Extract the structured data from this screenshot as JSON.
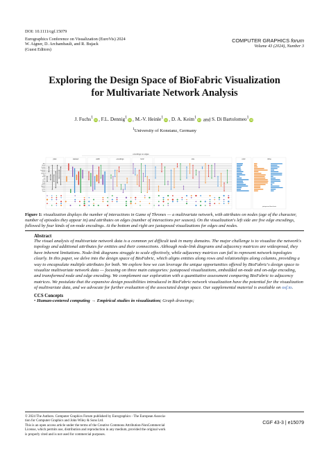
{
  "header": {
    "doi": "DOI: 10.1111/cgf.15079",
    "conference": "Eurographics Conference on Visualization (EuroVis) 2024",
    "editors": "W. Aigner, D. Archambault, and R. Bujack",
    "editors_note": "(Guest Editors)",
    "journal_name": "COMPUTER GRAPHICS",
    "journal_forum": "forum",
    "volume": "Volume 43 (2024), Number 3"
  },
  "title_line1": "Exploring the Design Space of BioFabric Visualization",
  "title_line2": "for Multivariate Network Analysis",
  "authors": [
    {
      "name": "J. Fuchs",
      "sup": "1"
    },
    {
      "name": "F.L. Dennig",
      "sup": "1"
    },
    {
      "name": "M.-V. Heinle",
      "sup": "1"
    },
    {
      "name": "D. A. Keim",
      "sup": "1"
    },
    {
      "name": "S. Di Bartolomeo",
      "sup": "1"
    }
  ],
  "author_sep": ", ",
  "author_and": " and ",
  "affiliation_sup": "1",
  "affiliation": "University of Konstanz, Germany",
  "teaser": {
    "group_title": "encodings on edges",
    "sections": [
      "plain",
      "stacked",
      "width",
      "encodings",
      "horiz",
      "size",
      "color",
      "inline"
    ],
    "node_labels": [
      "Arya",
      "Bronn",
      "Catelyn",
      "Cersei",
      "Daenerys",
      "Davos",
      "Eddard",
      "Gilly",
      "Jaime",
      "Jon",
      "Lysa",
      "Petyr",
      "Robb",
      "Sansa",
      "Stannis",
      "Theon",
      "Tyrion",
      "Varys"
    ],
    "juxtaposed_label": "juxtaposed barcharts",
    "colors": {
      "blue": "#3b8fd6",
      "orange": "#f08a2c",
      "red": "#d8322b",
      "green": "#3aa655",
      "purple": "#8a5bb5",
      "gray": "#9a9a9a"
    }
  },
  "caption": {
    "label": "Figure 1:",
    "text": " visualization displays the number of interactions in Game of Thrones — a multivariate network, with attributes on nodes (age of the character, number of episodes they appear in) and attributes on edges (number of interactions per season). On the visualization's left side are five edge encodings, followed by four kinds of on-node encodings. At the bottom and right are juxtaposed visualizations for edges and nodes."
  },
  "abstract": {
    "heading": "Abstract",
    "text": "The visual analysis of multivariate network data is a common yet difficult task in many domains. The major challenge is to visualize the network's topology and additional attributes for entities and their connections. Although node-link diagrams and adjacency matrices are widespread, they have inherent limitations. Node-link diagrams struggle to scale effectively, while adjacency matrices can fail to represent network topologies clearly. In this paper, we delve into the design space of BioFabric, which aligns entities along rows and relationships along columns, providing a way to encapsulate multiple attributes for both. We explore how we can leverage the unique opportunities offered by BioFabric's design space to visualize multivariate network data — focusing on three main categories: juxtaposed visualizations, embedded on-node and on-edge encoding, and transformed node and edge encoding. We complement our exploration with a quantitative assessment comparing BioFabric to adjacency matrices. We postulate that the expansive design possibilities introduced in BioFabric network visualization have the potential for the visualization of multivariate data, and we advocate for further evaluation of the associated design space. Our supplemental material is available on ",
    "link_text": "osf.io",
    "end": "."
  },
  "ccs": {
    "heading": "CCS Concepts",
    "bullet": "• ",
    "item1": "Human-centered computing",
    "arrow": " → ",
    "item2": "Empirical studies in visualization;",
    "item3": " Graph drawings;"
  },
  "footer": {
    "line1": "© 2024 The Authors. Computer Graphics Forum published by Eurographics - The European Associa-",
    "line2": "tion for Computer Graphics and John Wiley & Sons Ltd.",
    "line3": "This is an open access article under the terms of the Creative Commons Attribution-NonCommercial",
    "line4": "License, which permits use, distribution and reproduction in any medium, provided the original work",
    "line5": "is properly cited and is not used for commercial purposes.",
    "page_ref": "CGF 43-3 | e15079"
  }
}
